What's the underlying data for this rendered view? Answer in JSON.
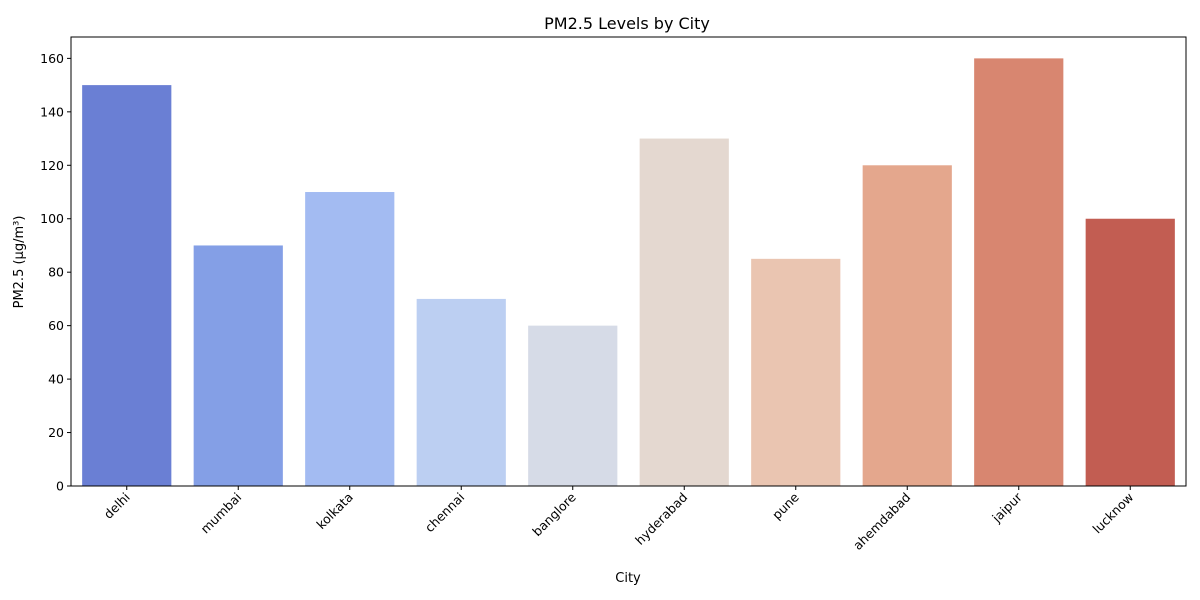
{
  "chart_data": {
    "type": "bar",
    "title": "PM2.5 Levels by City",
    "xlabel": "City",
    "ylabel": "PM2.5 (µg/m³)",
    "categories": [
      "delhi",
      "mumbai",
      "kolkata",
      "chennai",
      "banglore",
      "hyderabad",
      "pune",
      "ahemdabad",
      "jaipur",
      "lucknow"
    ],
    "values": [
      150,
      90,
      110,
      70,
      60,
      130,
      85,
      120,
      160,
      100
    ],
    "colors": [
      "#6a7fd4",
      "#849fe6",
      "#a3bbf2",
      "#bccff2",
      "#d6dbe7",
      "#e4d8d0",
      "#eac5b1",
      "#e4a78d",
      "#d88670",
      "#c25d52"
    ],
    "ylim": [
      0,
      168
    ],
    "yticks": [
      0,
      20,
      40,
      60,
      80,
      100,
      120,
      140,
      160
    ],
    "grid": false,
    "legend": "none"
  }
}
